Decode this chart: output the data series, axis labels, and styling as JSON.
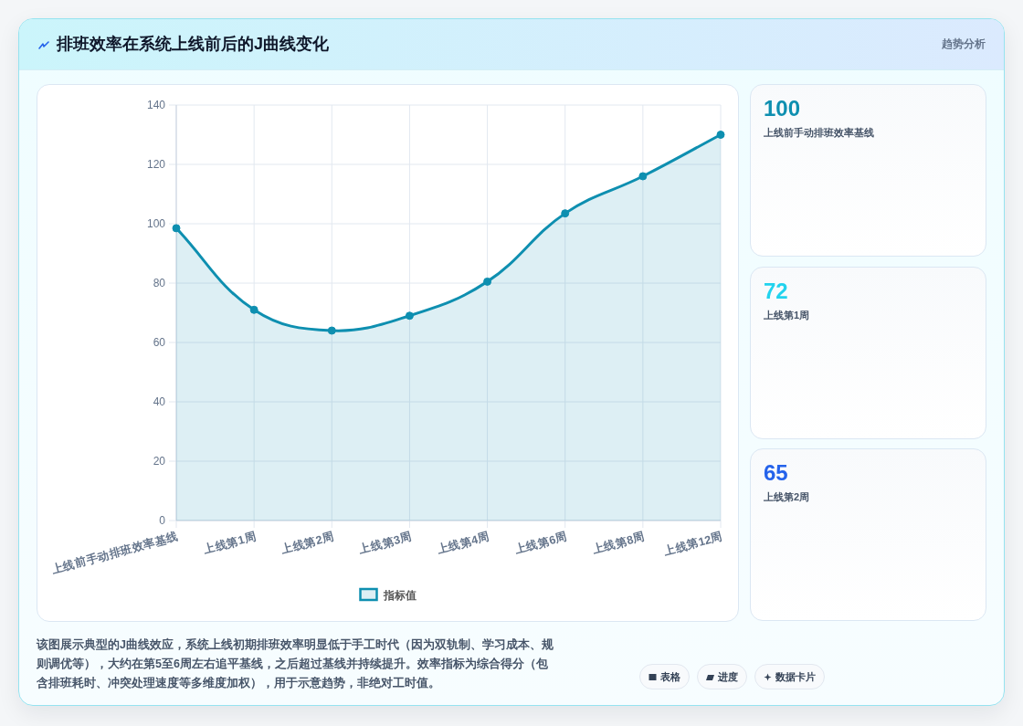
{
  "chart_data": [
    {
      "type": "area",
      "title": "排班效率在系统上线前后的J曲线变化",
      "categories": [
        "上线前手动排班效率基线",
        "上线第1周",
        "上线第2周",
        "上线第3周",
        "上线第4周",
        "上线第6周",
        "上线第8周",
        "上线第12周"
      ],
      "series": [
        {
          "name": "指标值",
          "color": "#0e8fb0",
          "values": [
            98.5,
            71,
            64,
            69,
            80.5,
            103.5,
            116,
            130
          ]
        }
      ],
      "ylim": [
        0,
        140
      ],
      "yticks": [
        0,
        20,
        40,
        60,
        80,
        100,
        120,
        140
      ],
      "grid": true,
      "legend": "bottom",
      "marker": "circle",
      "annotations": [
        "趋势分析",
        "该图展示典型的J曲线效应，系统上线初期排班效率明显低于手工时代（因为双轨制、学习成本、规则调优等），大约在第5至6周左右追平基线，之后超过基线并持续提升。效率指标为综合得分（包含排班耗时、冲突处理速度等多维度加权），用于示意趋势，非绝对工时值。"
      ]
    },
    {
      "type": "other",
      "title": "100",
      "subtitle": "上线前手动排班效率基线",
      "colors": [
        "#0e8fb0"
      ]
    },
    {
      "type": "other",
      "title": "72",
      "subtitle": "上线第1周",
      "colors": [
        "#22d3ee"
      ]
    },
    {
      "type": "other",
      "title": "65",
      "subtitle": "上线第2周",
      "colors": [
        "#2563eb"
      ]
    },
    {
      "type": "other",
      "annotations": [
        "表格",
        "进度",
        "数据卡片"
      ]
    }
  ]
}
